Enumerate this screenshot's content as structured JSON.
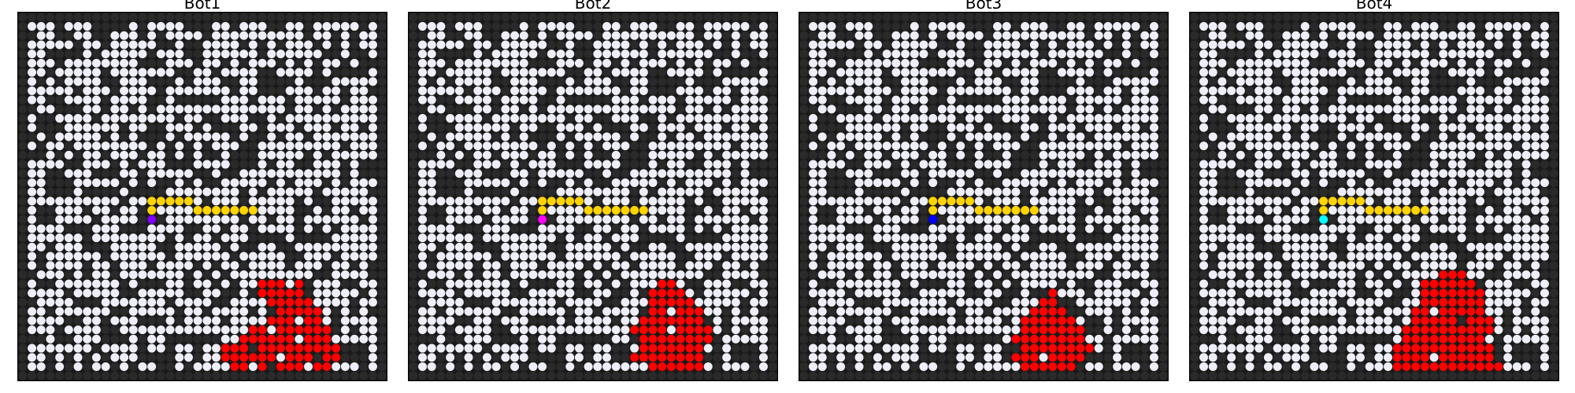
{
  "colors": {
    "background": "#1a1a1a",
    "open_cell": "#eeeef8",
    "closed_cell": "#2a2a2a",
    "path": "#ffd400",
    "fire": "#ff0000"
  },
  "grid": {
    "rows": 40,
    "cols": 40
  },
  "panels": [
    {
      "title": "Bot1",
      "bot": {
        "row": 22,
        "col": 14,
        "color": "#7f00ff"
      },
      "path": [
        [
          21,
          14
        ],
        [
          20,
          14
        ],
        [
          20,
          15
        ],
        [
          20,
          16
        ],
        [
          20,
          17
        ],
        [
          20,
          18
        ],
        [
          21,
          19
        ],
        [
          21,
          20
        ],
        [
          21,
          21
        ],
        [
          21,
          22
        ],
        [
          21,
          23
        ],
        [
          21,
          24
        ],
        [
          21,
          25
        ]
      ],
      "fire": [
        [
          29,
          26
        ],
        [
          29,
          27
        ],
        [
          29,
          28
        ],
        [
          29,
          30
        ],
        [
          30,
          26
        ],
        [
          30,
          27
        ],
        [
          30,
          28
        ],
        [
          30,
          29
        ],
        [
          30,
          30
        ],
        [
          31,
          27
        ],
        [
          31,
          28
        ],
        [
          31,
          29
        ],
        [
          31,
          30
        ],
        [
          31,
          31
        ],
        [
          32,
          28
        ],
        [
          32,
          29
        ],
        [
          32,
          30
        ],
        [
          32,
          31
        ],
        [
          32,
          32
        ],
        [
          33,
          27
        ],
        [
          33,
          28
        ],
        [
          33,
          29
        ],
        [
          33,
          31
        ],
        [
          33,
          32
        ],
        [
          34,
          25
        ],
        [
          34,
          26
        ],
        [
          34,
          28
        ],
        [
          34,
          29
        ],
        [
          34,
          30
        ],
        [
          34,
          31
        ],
        [
          34,
          32
        ],
        [
          34,
          33
        ],
        [
          35,
          24
        ],
        [
          35,
          25
        ],
        [
          35,
          26
        ],
        [
          35,
          27
        ],
        [
          35,
          28
        ],
        [
          35,
          29
        ],
        [
          35,
          31
        ],
        [
          35,
          32
        ],
        [
          35,
          33
        ],
        [
          36,
          22
        ],
        [
          36,
          23
        ],
        [
          36,
          24
        ],
        [
          36,
          26
        ],
        [
          36,
          27
        ],
        [
          36,
          28
        ],
        [
          36,
          29
        ],
        [
          36,
          30
        ],
        [
          36,
          31
        ],
        [
          36,
          32
        ],
        [
          36,
          33
        ],
        [
          36,
          34
        ],
        [
          37,
          22
        ],
        [
          37,
          23
        ],
        [
          37,
          24
        ],
        [
          37,
          25
        ],
        [
          37,
          26
        ],
        [
          37,
          27
        ],
        [
          37,
          29
        ],
        [
          37,
          30
        ],
        [
          37,
          31
        ],
        [
          37,
          33
        ],
        [
          37,
          34
        ],
        [
          38,
          23
        ],
        [
          38,
          24
        ],
        [
          38,
          26
        ],
        [
          38,
          28
        ],
        [
          38,
          29
        ],
        [
          38,
          30
        ],
        [
          38,
          32
        ],
        [
          38,
          33
        ]
      ]
    },
    {
      "title": "Bot2",
      "bot": {
        "row": 22,
        "col": 14,
        "color": "#ff00ff"
      },
      "path": [
        [
          21,
          14
        ],
        [
          20,
          14
        ],
        [
          20,
          15
        ],
        [
          20,
          16
        ],
        [
          20,
          17
        ],
        [
          20,
          18
        ],
        [
          21,
          19
        ],
        [
          21,
          20
        ],
        [
          21,
          21
        ],
        [
          21,
          22
        ],
        [
          21,
          23
        ],
        [
          21,
          24
        ],
        [
          21,
          25
        ]
      ],
      "fire": [
        [
          29,
          27
        ],
        [
          29,
          28
        ],
        [
          30,
          26
        ],
        [
          30,
          27
        ],
        [
          30,
          28
        ],
        [
          30,
          29
        ],
        [
          31,
          26
        ],
        [
          31,
          27
        ],
        [
          31,
          28
        ],
        [
          31,
          29
        ],
        [
          31,
          30
        ],
        [
          32,
          26
        ],
        [
          32,
          27
        ],
        [
          32,
          29
        ],
        [
          32,
          30
        ],
        [
          32,
          31
        ],
        [
          33,
          25
        ],
        [
          33,
          26
        ],
        [
          33,
          27
        ],
        [
          33,
          28
        ],
        [
          33,
          29
        ],
        [
          33,
          30
        ],
        [
          33,
          31
        ],
        [
          34,
          24
        ],
        [
          34,
          25
        ],
        [
          34,
          26
        ],
        [
          34,
          27
        ],
        [
          34,
          29
        ],
        [
          34,
          30
        ],
        [
          34,
          31
        ],
        [
          34,
          32
        ],
        [
          35,
          25
        ],
        [
          35,
          26
        ],
        [
          35,
          27
        ],
        [
          35,
          28
        ],
        [
          35,
          29
        ],
        [
          35,
          30
        ],
        [
          35,
          31
        ],
        [
          35,
          32
        ],
        [
          36,
          25
        ],
        [
          36,
          26
        ],
        [
          36,
          27
        ],
        [
          36,
          28
        ],
        [
          36,
          29
        ],
        [
          36,
          30
        ],
        [
          36,
          31
        ],
        [
          37,
          24
        ],
        [
          37,
          25
        ],
        [
          37,
          26
        ],
        [
          37,
          27
        ],
        [
          37,
          28
        ],
        [
          37,
          29
        ],
        [
          37,
          30
        ],
        [
          37,
          31
        ],
        [
          38,
          26
        ],
        [
          38,
          27
        ],
        [
          38,
          28
        ],
        [
          38,
          29
        ],
        [
          38,
          30
        ],
        [
          38,
          31
        ]
      ]
    },
    {
      "title": "Bot3",
      "bot": {
        "row": 22,
        "col": 14,
        "color": "#0000ff"
      },
      "path": [
        [
          21,
          14
        ],
        [
          20,
          14
        ],
        [
          20,
          15
        ],
        [
          20,
          16
        ],
        [
          20,
          17
        ],
        [
          20,
          18
        ],
        [
          21,
          19
        ],
        [
          21,
          20
        ],
        [
          21,
          21
        ],
        [
          21,
          22
        ],
        [
          21,
          23
        ],
        [
          21,
          24
        ],
        [
          21,
          25
        ]
      ],
      "fire": [
        [
          30,
          27
        ],
        [
          31,
          26
        ],
        [
          31,
          27
        ],
        [
          32,
          25
        ],
        [
          32,
          26
        ],
        [
          32,
          27
        ],
        [
          32,
          28
        ],
        [
          33,
          24
        ],
        [
          33,
          25
        ],
        [
          33,
          26
        ],
        [
          33,
          27
        ],
        [
          33,
          28
        ],
        [
          33,
          29
        ],
        [
          34,
          24
        ],
        [
          34,
          25
        ],
        [
          34,
          26
        ],
        [
          34,
          27
        ],
        [
          34,
          28
        ],
        [
          34,
          29
        ],
        [
          34,
          30
        ],
        [
          35,
          23
        ],
        [
          35,
          24
        ],
        [
          35,
          25
        ],
        [
          35,
          26
        ],
        [
          35,
          27
        ],
        [
          35,
          28
        ],
        [
          35,
          29
        ],
        [
          35,
          30
        ],
        [
          36,
          24
        ],
        [
          36,
          25
        ],
        [
          36,
          26
        ],
        [
          36,
          27
        ],
        [
          36,
          28
        ],
        [
          36,
          29
        ],
        [
          36,
          30
        ],
        [
          36,
          31
        ],
        [
          37,
          23
        ],
        [
          37,
          24
        ],
        [
          37,
          25
        ],
        [
          37,
          27
        ],
        [
          37,
          28
        ],
        [
          37,
          29
        ],
        [
          37,
          30
        ],
        [
          38,
          24
        ],
        [
          38,
          25
        ],
        [
          38,
          26
        ],
        [
          38,
          27
        ],
        [
          38,
          28
        ],
        [
          38,
          29
        ]
      ]
    },
    {
      "title": "Bot4",
      "bot": {
        "row": 22,
        "col": 14,
        "color": "#00ffff"
      },
      "path": [
        [
          21,
          14
        ],
        [
          20,
          14
        ],
        [
          20,
          15
        ],
        [
          20,
          16
        ],
        [
          20,
          17
        ],
        [
          20,
          18
        ],
        [
          21,
          19
        ],
        [
          21,
          20
        ],
        [
          21,
          21
        ],
        [
          21,
          22
        ],
        [
          21,
          23
        ],
        [
          21,
          24
        ],
        [
          21,
          25
        ]
      ],
      "fire": [
        [
          28,
          27
        ],
        [
          28,
          28
        ],
        [
          28,
          29
        ],
        [
          29,
          25
        ],
        [
          29,
          26
        ],
        [
          29,
          27
        ],
        [
          29,
          28
        ],
        [
          29,
          29
        ],
        [
          29,
          30
        ],
        [
          30,
          25
        ],
        [
          30,
          26
        ],
        [
          30,
          27
        ],
        [
          30,
          28
        ],
        [
          30,
          29
        ],
        [
          30,
          30
        ],
        [
          30,
          31
        ],
        [
          31,
          25
        ],
        [
          31,
          26
        ],
        [
          31,
          27
        ],
        [
          31,
          28
        ],
        [
          31,
          29
        ],
        [
          31,
          30
        ],
        [
          31,
          31
        ],
        [
          32,
          24
        ],
        [
          32,
          25
        ],
        [
          32,
          27
        ],
        [
          32,
          28
        ],
        [
          32,
          29
        ],
        [
          32,
          30
        ],
        [
          32,
          31
        ],
        [
          33,
          24
        ],
        [
          33,
          25
        ],
        [
          33,
          26
        ],
        [
          33,
          27
        ],
        [
          33,
          28
        ],
        [
          33,
          30
        ],
        [
          33,
          31
        ],
        [
          33,
          32
        ],
        [
          34,
          23
        ],
        [
          34,
          24
        ],
        [
          34,
          25
        ],
        [
          34,
          26
        ],
        [
          34,
          27
        ],
        [
          34,
          28
        ],
        [
          34,
          29
        ],
        [
          34,
          30
        ],
        [
          34,
          31
        ],
        [
          34,
          32
        ],
        [
          35,
          23
        ],
        [
          35,
          24
        ],
        [
          35,
          25
        ],
        [
          35,
          26
        ],
        [
          35,
          27
        ],
        [
          35,
          28
        ],
        [
          35,
          29
        ],
        [
          35,
          30
        ],
        [
          35,
          31
        ],
        [
          36,
          22
        ],
        [
          36,
          23
        ],
        [
          36,
          24
        ],
        [
          36,
          25
        ],
        [
          36,
          26
        ],
        [
          36,
          27
        ],
        [
          36,
          28
        ],
        [
          36,
          29
        ],
        [
          36,
          30
        ],
        [
          36,
          31
        ],
        [
          36,
          32
        ],
        [
          37,
          22
        ],
        [
          37,
          23
        ],
        [
          37,
          24
        ],
        [
          37,
          25
        ],
        [
          37,
          27
        ],
        [
          37,
          28
        ],
        [
          37,
          29
        ],
        [
          37,
          30
        ],
        [
          37,
          31
        ],
        [
          37,
          32
        ],
        [
          38,
          22
        ],
        [
          38,
          23
        ],
        [
          38,
          24
        ],
        [
          38,
          25
        ],
        [
          38,
          26
        ],
        [
          38,
          27
        ],
        [
          38,
          28
        ],
        [
          38,
          29
        ],
        [
          38,
          30
        ],
        [
          38,
          31
        ],
        [
          38,
          32
        ],
        [
          38,
          33
        ]
      ]
    }
  ]
}
